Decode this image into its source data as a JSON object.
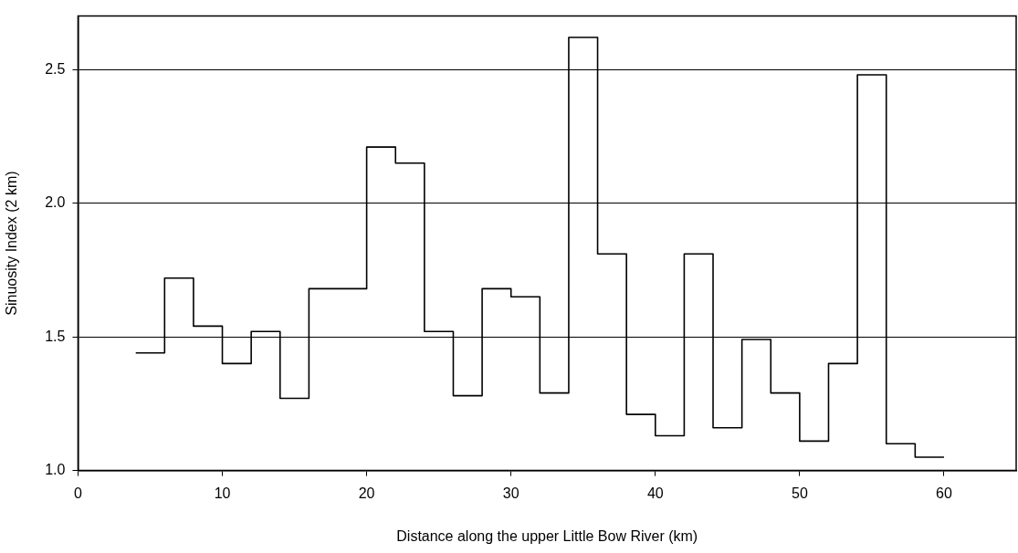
{
  "chart_data": {
    "type": "step",
    "xlabel": "Distance along the upper Little Bow River (km)",
    "ylabel": "Sinuosity Index (2 km)",
    "x": [
      4,
      6,
      8,
      10,
      12,
      14,
      16,
      18,
      20,
      22,
      24,
      26,
      28,
      30,
      32,
      34,
      36,
      38,
      40,
      42,
      44,
      46,
      48,
      50,
      52,
      54,
      56,
      58,
      60
    ],
    "series": [
      {
        "color": "#000000",
        "values": [
          1.44,
          1.72,
          1.54,
          1.4,
          1.52,
          1.27,
          1.68,
          1.68,
          2.21,
          2.15,
          1.52,
          1.28,
          1.68,
          1.65,
          1.29,
          2.62,
          1.81,
          1.21,
          1.13,
          1.81,
          1.16,
          1.49,
          1.29,
          1.11,
          1.4,
          2.48,
          1.1,
          1.05,
          1.05
        ]
      }
    ],
    "xlim": [
      0,
      65
    ],
    "xticks": [
      0,
      10,
      20,
      30,
      40,
      50,
      60
    ],
    "ylim": [
      1,
      2.7
    ],
    "yticks": [
      {
        "value": 1,
        "label": "1.0"
      },
      2.5,
      {
        "value": 2,
        "label": "2.0"
      },
      1.5
    ],
    "grid": "y",
    "legend": false,
    "marker": "none",
    "line_style": "solid"
  }
}
